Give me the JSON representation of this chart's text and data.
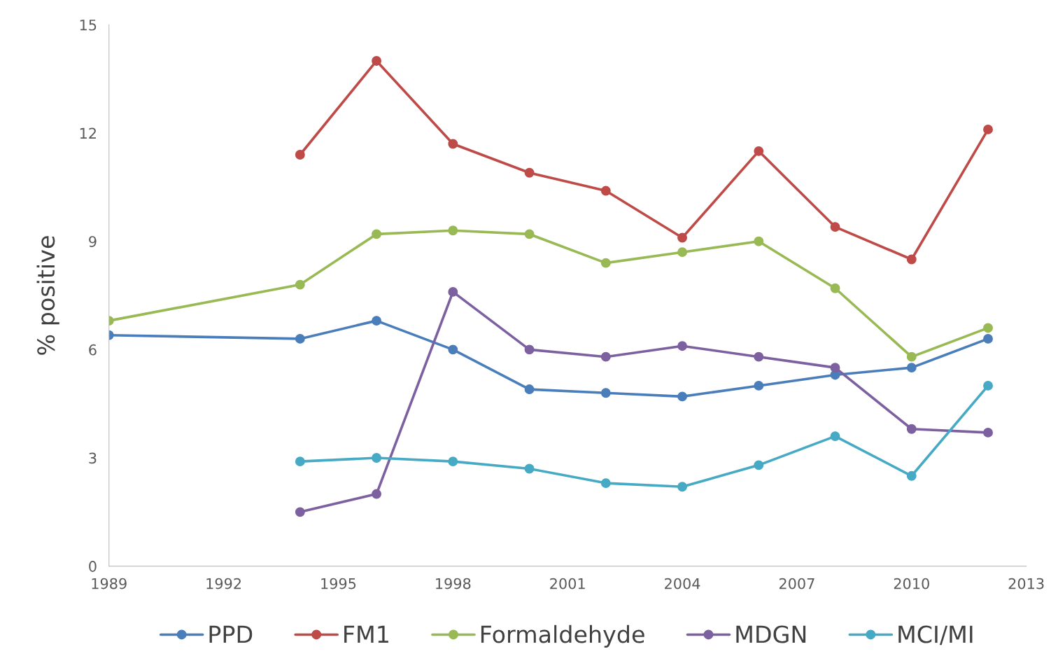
{
  "chart_data": {
    "type": "line",
    "ylabel": "% positive",
    "x": [
      1989,
      1994,
      1996,
      1998,
      2000,
      2002,
      2004,
      2006,
      2008,
      2010,
      2012
    ],
    "series": [
      {
        "name": "PPD",
        "color": "#4a7ebb",
        "values": [
          6.4,
          6.3,
          6.8,
          6.0,
          4.9,
          4.8,
          4.7,
          5.0,
          5.3,
          5.5,
          6.3
        ]
      },
      {
        "name": "FM1",
        "color": "#be4b48",
        "values": [
          null,
          11.4,
          14.0,
          11.7,
          10.9,
          10.4,
          9.1,
          11.5,
          9.4,
          8.5,
          12.1
        ]
      },
      {
        "name": "Formaldehyde",
        "color": "#98b954",
        "values": [
          6.8,
          7.8,
          9.2,
          9.3,
          9.2,
          8.4,
          8.7,
          9.0,
          7.7,
          5.8,
          6.6
        ]
      },
      {
        "name": "MDGN",
        "color": "#7d60a0",
        "values": [
          null,
          1.5,
          2.0,
          7.6,
          6.0,
          5.8,
          6.1,
          5.8,
          5.5,
          3.8,
          3.7
        ]
      },
      {
        "name": "MCI/MI",
        "color": "#46aac5",
        "values": [
          null,
          2.9,
          3.0,
          2.9,
          2.7,
          2.3,
          2.2,
          2.8,
          3.6,
          2.5,
          5.0
        ]
      }
    ],
    "xlim": [
      1989,
      2013
    ],
    "xticks": [
      1989,
      1992,
      1995,
      1998,
      2001,
      2004,
      2007,
      2010,
      2013
    ],
    "ylim": [
      0,
      15
    ],
    "yticks": [
      0,
      3,
      6,
      9,
      12,
      15
    ],
    "grid": false,
    "legend": "bottom",
    "marker": "circle",
    "line_style": "solid"
  }
}
